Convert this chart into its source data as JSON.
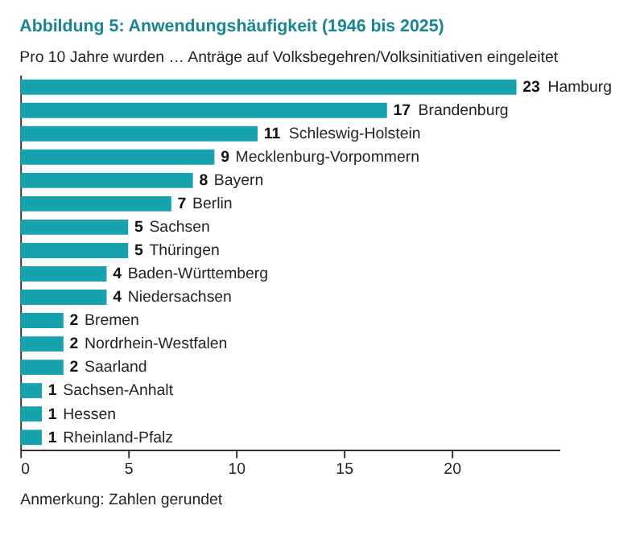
{
  "chart_data": {
    "type": "bar",
    "orientation": "horizontal",
    "title": "Abbildung 5: Anwendungshäufigkeit (1946 bis 2025)",
    "subtitle": "Pro 10 Jahre wurden … Anträge auf Volksbegehren/Volksinitiativen eingeleitet",
    "categories": [
      "Hamburg",
      "Brandenburg",
      "Schleswig-Holstein",
      "Mecklenburg-Vorpommern",
      "Bayern",
      "Berlin",
      "Sachsen",
      "Thüringen",
      "Baden-Württemberg",
      "Niedersachsen",
      "Bremen",
      "Nordrhein-Westfalen",
      "Saarland",
      "Sachsen-Anhalt",
      "Hessen",
      "Rheinland-Pfalz"
    ],
    "values": [
      23,
      17,
      11,
      9,
      8,
      7,
      5,
      5,
      4,
      4,
      2,
      2,
      2,
      1,
      1,
      1
    ],
    "color": "#17a2ae",
    "xlim": [
      0,
      25
    ],
    "xticks": [
      0,
      5,
      10,
      15,
      20
    ],
    "grid": false,
    "data_labels": true,
    "legend": false,
    "annotations": [
      "Anmerkung: Zahlen gerundet"
    ]
  }
}
